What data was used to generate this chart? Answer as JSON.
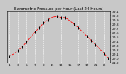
{
  "title": "Barometric Pressure per Hour (Last 24 Hours)",
  "bg_color": "#c8c8c8",
  "plot_bg_color": "#c8c8c8",
  "grid_color": "#ffffff",
  "line_color": "#ff0000",
  "marker_color": "#000000",
  "x_values": [
    0,
    1,
    2,
    3,
    4,
    5,
    6,
    7,
    8,
    9,
    10,
    11,
    12,
    13,
    14,
    15,
    16,
    17,
    18,
    19,
    20,
    21,
    22,
    23
  ],
  "y_values": [
    29.05,
    29.1,
    29.18,
    29.27,
    29.38,
    29.5,
    29.62,
    29.72,
    29.83,
    29.9,
    29.96,
    29.98,
    29.95,
    29.95,
    29.88,
    29.8,
    29.72,
    29.62,
    29.52,
    29.42,
    29.32,
    29.22,
    29.12,
    29.0
  ],
  "ylim_min": 28.9,
  "ylim_max": 30.1,
  "ytick_values": [
    28.9,
    29.0,
    29.1,
    29.2,
    29.3,
    29.4,
    29.5,
    29.6,
    29.7,
    29.8,
    29.9,
    30.0,
    30.1
  ],
  "ytick_labels": [
    "28.9",
    "29.0",
    "29.1",
    "29.2",
    "29.3",
    "29.4",
    "29.5",
    "29.6",
    "29.7",
    "29.8",
    "29.9",
    "30.0",
    "30.1"
  ],
  "xtick_values": [
    0,
    2,
    4,
    6,
    8,
    10,
    12,
    14,
    16,
    18,
    20,
    22
  ],
  "xtick_labels": [
    "1",
    "3",
    "5",
    "7",
    "9",
    "11",
    "13",
    "15",
    "17",
    "19",
    "21",
    "23"
  ],
  "vgrid_positions": [
    0,
    2,
    4,
    6,
    8,
    10,
    12,
    14,
    16,
    18,
    20,
    22
  ],
  "title_fontsize": 4.0,
  "tick_fontsize": 3.2,
  "line_width": 0.6,
  "marker_size": 3.0
}
